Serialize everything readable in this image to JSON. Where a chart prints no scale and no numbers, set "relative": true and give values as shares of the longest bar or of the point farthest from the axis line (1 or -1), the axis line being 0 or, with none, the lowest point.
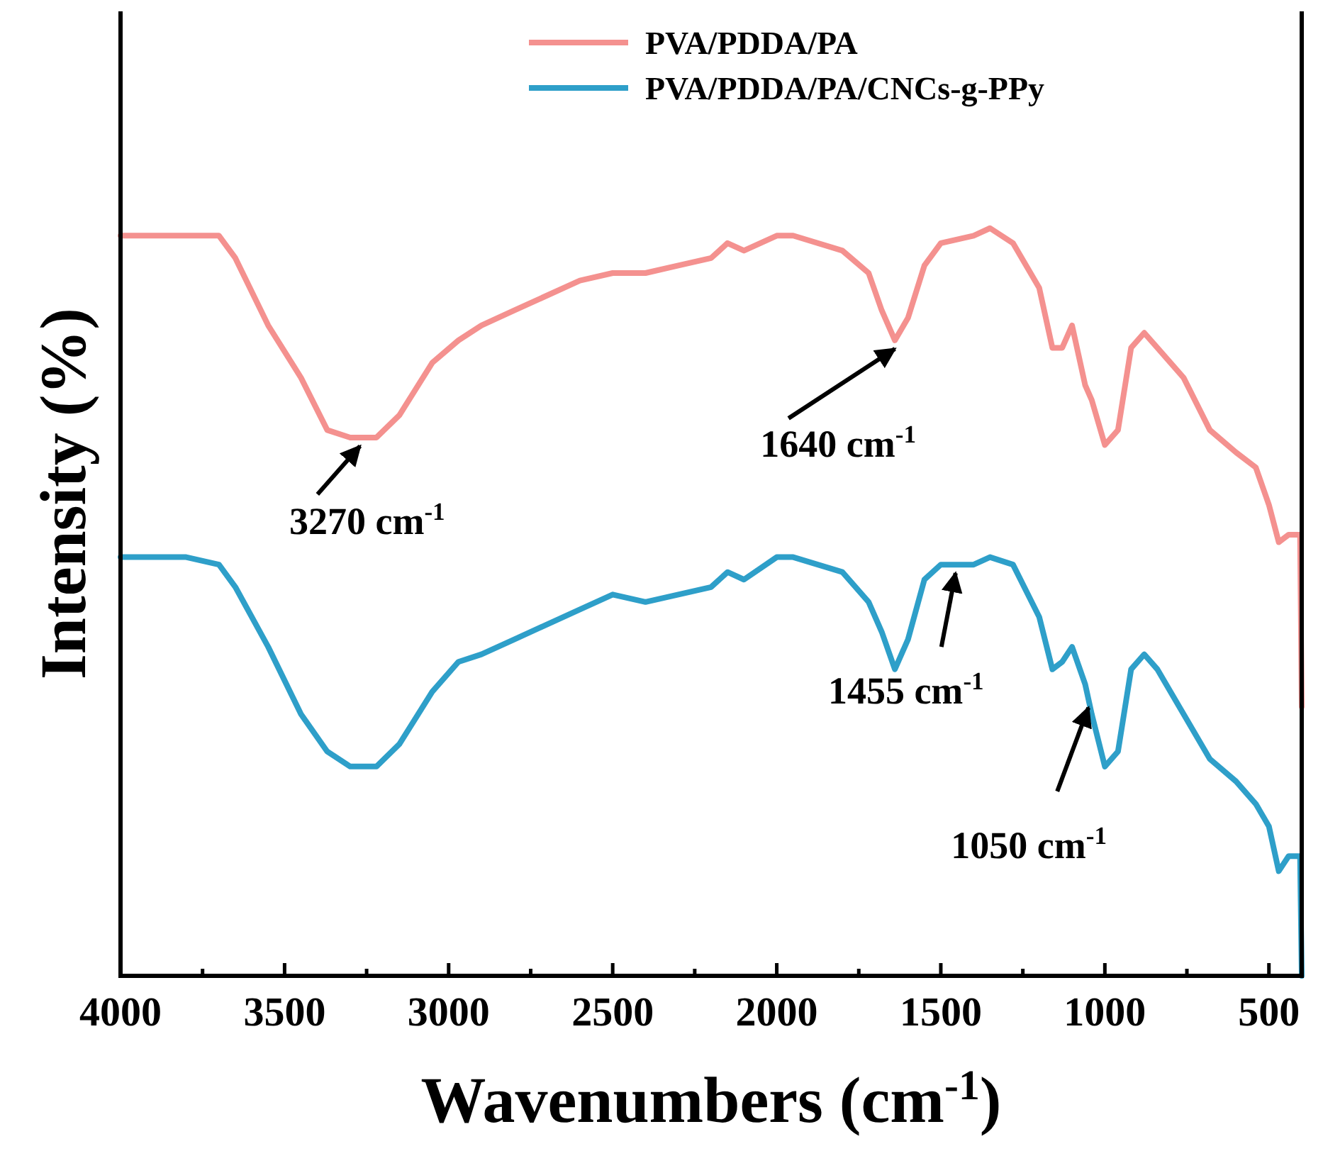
{
  "chart_data": {
    "type": "line",
    "relative": true,
    "xlabel": "Wavenumbers (cm$^{-1}$)",
    "ylabel": "Intensity (%)",
    "xlim": [
      4000,
      400
    ],
    "xticks": [
      4000,
      {
        "value": 3750,
        "label": null
      },
      3500,
      {
        "value": 3250,
        "label": null
      },
      3000,
      {
        "value": 2750,
        "label": null
      },
      2500,
      {
        "value": 2250,
        "label": null
      },
      2000,
      {
        "value": 1750,
        "label": null
      },
      1500,
      {
        "value": 1250,
        "label": null
      },
      1000,
      {
        "value": 750,
        "label": null
      },
      500
    ],
    "tick_labels": "x",
    "grid": false,
    "legend": "top right",
    "line_style": "solid",
    "x": [
      4000,
      3800,
      3700,
      3650,
      3550,
      3450,
      3370,
      3300,
      3220,
      3150,
      3050,
      2970,
      2900,
      2800,
      2600,
      2500,
      2400,
      2300,
      2200,
      2150,
      2100,
      2000,
      1950,
      1800,
      1720,
      1680,
      1640,
      1600,
      1550,
      1500,
      1400,
      1350,
      1280,
      1200,
      1160,
      1130,
      1100,
      1060,
      1040,
      1000,
      960,
      920,
      880,
      840,
      760,
      680,
      600,
      540,
      500,
      470,
      440,
      405,
      400
    ],
    "series": [
      {
        "name": "PVA/PDDA/PA",
        "color": "#f4918f",
        "values": [
          0.99,
          0.99,
          0.99,
          0.96,
          0.87,
          0.8,
          0.73,
          0.72,
          0.72,
          0.75,
          0.82,
          0.85,
          0.87,
          0.89,
          0.93,
          0.94,
          0.94,
          0.95,
          0.96,
          0.98,
          0.97,
          0.99,
          0.99,
          0.97,
          0.94,
          0.89,
          0.85,
          0.88,
          0.95,
          0.98,
          0.99,
          1.0,
          0.98,
          0.92,
          0.84,
          0.84,
          0.87,
          0.79,
          0.77,
          0.71,
          0.73,
          0.84,
          0.86,
          0.84,
          0.8,
          0.73,
          0.7,
          0.68,
          0.63,
          0.58,
          0.59,
          0.59,
          0.36
        ]
      },
      {
        "name": "PVA/PDDA/PA/CNCs-g-PPy",
        "color": "#2e9fc9",
        "values": [
          0.56,
          0.56,
          0.55,
          0.52,
          0.44,
          0.35,
          0.3,
          0.28,
          0.28,
          0.31,
          0.38,
          0.42,
          0.43,
          0.45,
          0.49,
          0.51,
          0.5,
          0.51,
          0.52,
          0.54,
          0.53,
          0.56,
          0.56,
          0.54,
          0.5,
          0.46,
          0.41,
          0.45,
          0.53,
          0.55,
          0.55,
          0.56,
          0.55,
          0.48,
          0.41,
          0.42,
          0.44,
          0.39,
          0.35,
          0.28,
          0.3,
          0.41,
          0.43,
          0.41,
          0.35,
          0.29,
          0.26,
          0.23,
          0.2,
          0.14,
          0.16,
          0.16,
          0.0
        ]
      }
    ],
    "annotations": [
      {
        "text": "3270 cm$^{-1}$",
        "x": 3270,
        "y": 0.72
      },
      {
        "text": "1640 cm$^{-1}$",
        "x": 1640,
        "y": 0.85
      },
      {
        "text": "1455 cm$^{-1}$",
        "x": 1455,
        "y": 0.55
      },
      {
        "text": "1050 cm$^{-1}$",
        "x": 1050,
        "y": 0.37
      }
    ]
  }
}
